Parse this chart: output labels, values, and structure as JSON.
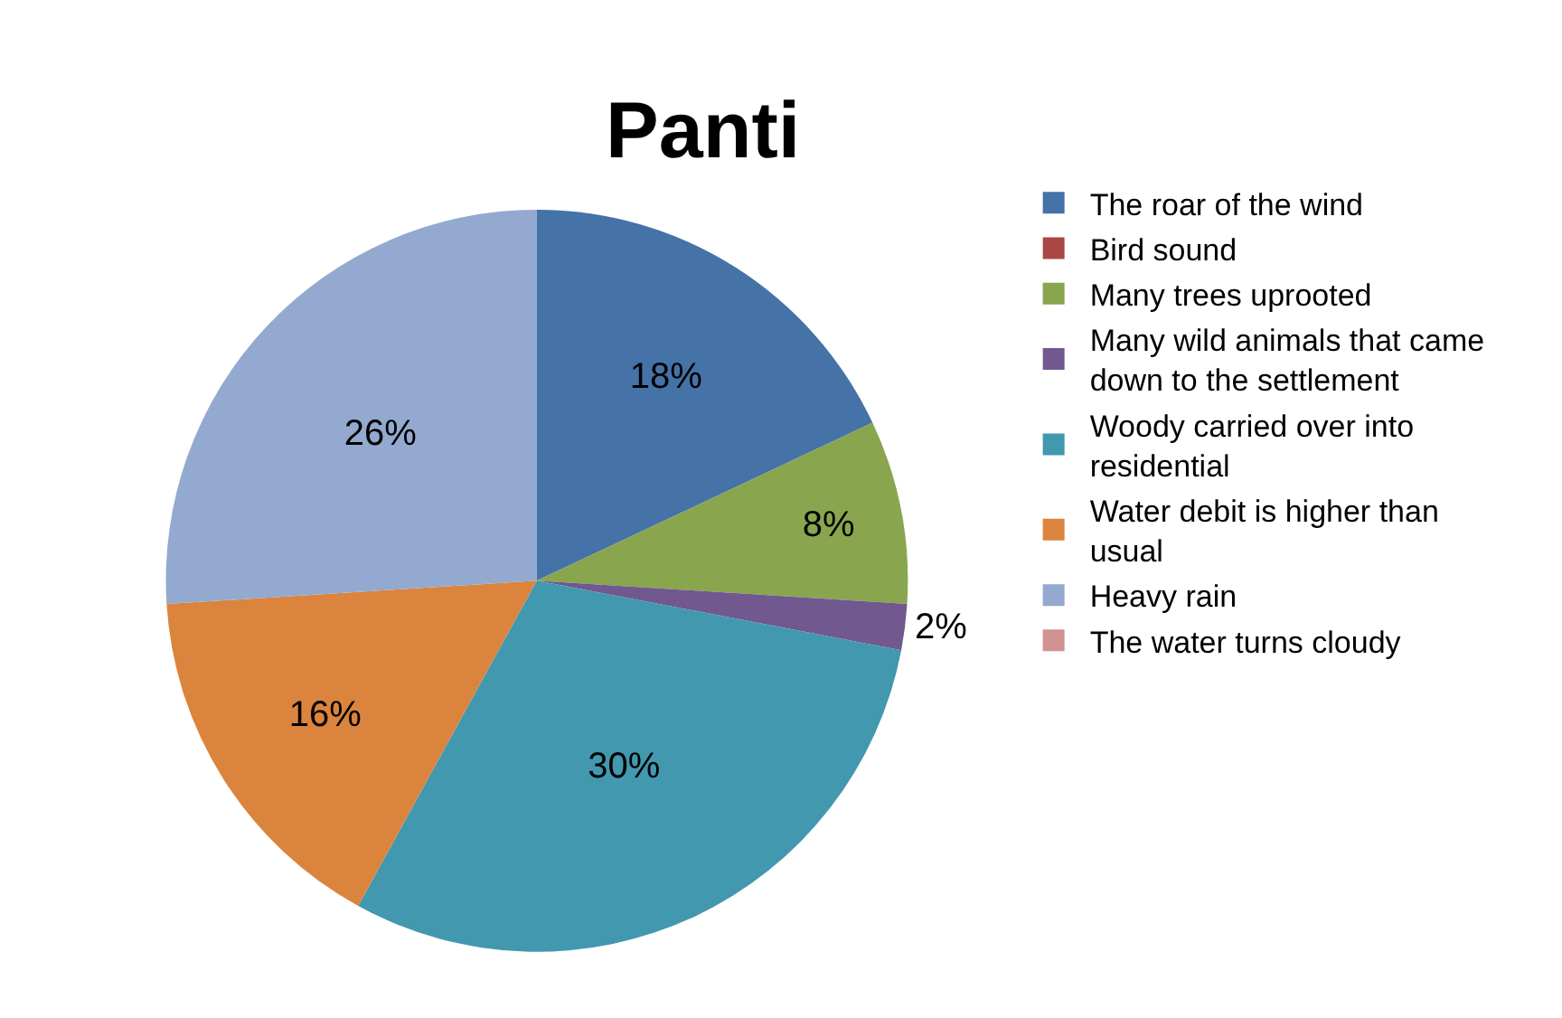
{
  "chart_data": {
    "type": "pie",
    "title": "Panti",
    "categories": [
      "The roar of the wind",
      "Bird sound",
      "Many trees uprooted",
      "Many wild animals that came down to the settlement",
      "Woody carried over into residential",
      "Water debit is higher than usual",
      "Heavy rain",
      "The water turns cloudy"
    ],
    "values": [
      18,
      0,
      8,
      2,
      30,
      16,
      26,
      0
    ],
    "value_labels": [
      "18%",
      null,
      "8%",
      "2%",
      "30%",
      "16%",
      "26%",
      null
    ],
    "colors": [
      "#4572a7",
      "#aa4643",
      "#89a54e",
      "#71588f",
      "#4198af",
      "#db843d",
      "#93a9cf",
      "#d19392"
    ],
    "legend": "right"
  }
}
